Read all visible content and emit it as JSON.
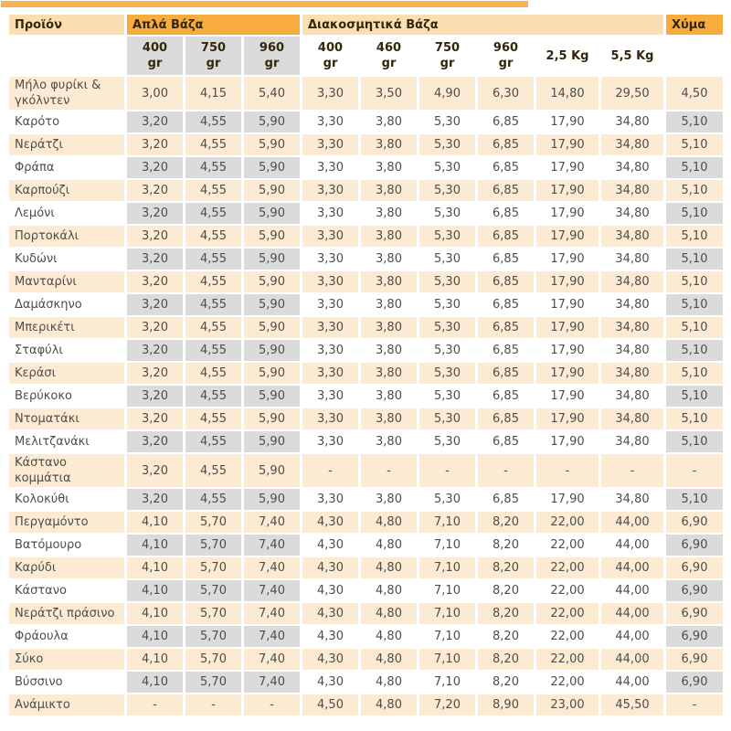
{
  "colors": {
    "top_bar": "#f9b353",
    "header_dark_orange": "#f8ac3e",
    "header_light_orange": "#fbdfb2",
    "row_cream": "#fcebd2",
    "cell_gray": "#dbdbdb",
    "value_text": "#4d4d4d",
    "header_text": "#33270a"
  },
  "table": {
    "header_groups": [
      {
        "label": "Προϊόν",
        "colspan": 1,
        "tone": "light"
      },
      {
        "label": "Απλά Βάζα",
        "colspan": 3,
        "tone": "dark"
      },
      {
        "label": "Διακοσμητικά Βάζα",
        "colspan": 6,
        "tone": "light"
      },
      {
        "label": "Χύμα",
        "colspan": 1,
        "tone": "dark"
      }
    ],
    "size_columns": [
      {
        "label": "400 gr",
        "two_line": true,
        "group": "simple"
      },
      {
        "label": "750 gr",
        "two_line": true,
        "group": "simple"
      },
      {
        "label": "960 gr",
        "two_line": true,
        "group": "simple"
      },
      {
        "label": "400 gr",
        "two_line": true,
        "group": "decor"
      },
      {
        "label": "460 gr",
        "two_line": true,
        "group": "decor"
      },
      {
        "label": "750 gr",
        "two_line": true,
        "group": "decor"
      },
      {
        "label": "960 gr",
        "two_line": true,
        "group": "decor"
      },
      {
        "label": "2,5 Kg",
        "two_line": false,
        "group": "decor"
      },
      {
        "label": "5,5 Kg",
        "two_line": false,
        "group": "decor"
      }
    ],
    "rows": [
      {
        "name": "Μήλο φυρίκι & γκόλντεν",
        "values": [
          "3,00",
          "4,15",
          "5,40",
          "3,30",
          "3,50",
          "4,90",
          "6,30",
          "14,80",
          "29,50",
          "4,50"
        ]
      },
      {
        "name": "Καρότο",
        "values": [
          "3,20",
          "4,55",
          "5,90",
          "3,30",
          "3,80",
          "5,30",
          "6,85",
          "17,90",
          "34,80",
          "5,10"
        ]
      },
      {
        "name": "Νεράτζι",
        "values": [
          "3,20",
          "4,55",
          "5,90",
          "3,30",
          "3,80",
          "5,30",
          "6,85",
          "17,90",
          "34,80",
          "5,10"
        ]
      },
      {
        "name": "Φράπα",
        "values": [
          "3,20",
          "4,55",
          "5,90",
          "3,30",
          "3,80",
          "5,30",
          "6,85",
          "17,90",
          "34,80",
          "5,10"
        ]
      },
      {
        "name": "Καρπούζι",
        "values": [
          "3,20",
          "4,55",
          "5,90",
          "3,30",
          "3,80",
          "5,30",
          "6,85",
          "17,90",
          "34,80",
          "5,10"
        ]
      },
      {
        "name": "Λεμόνι",
        "values": [
          "3,20",
          "4,55",
          "5,90",
          "3,30",
          "3,80",
          "5,30",
          "6,85",
          "17,90",
          "34,80",
          "5,10"
        ]
      },
      {
        "name": "Πορτοκάλι",
        "values": [
          "3,20",
          "4,55",
          "5,90",
          "3,30",
          "3,80",
          "5,30",
          "6,85",
          "17,90",
          "34,80",
          "5,10"
        ]
      },
      {
        "name": "Κυδώνι",
        "values": [
          "3,20",
          "4,55",
          "5,90",
          "3,30",
          "3,80",
          "5,30",
          "6,85",
          "17,90",
          "34,80",
          "5,10"
        ]
      },
      {
        "name": "Μανταρίνι",
        "values": [
          "3,20",
          "4,55",
          "5,90",
          "3,30",
          "3,80",
          "5,30",
          "6,85",
          "17,90",
          "34,80",
          "5,10"
        ]
      },
      {
        "name": "Δαμάσκηνο",
        "values": [
          "3,20",
          "4,55",
          "5,90",
          "3,30",
          "3,80",
          "5,30",
          "6,85",
          "17,90",
          "34,80",
          "5,10"
        ]
      },
      {
        "name": "Μπερικέτι",
        "values": [
          "3,20",
          "4,55",
          "5,90",
          "3,30",
          "3,80",
          "5,30",
          "6,85",
          "17,90",
          "34,80",
          "5,10"
        ]
      },
      {
        "name": "Σταφύλι",
        "values": [
          "3,20",
          "4,55",
          "5,90",
          "3,30",
          "3,80",
          "5,30",
          "6,85",
          "17,90",
          "34,80",
          "5,10"
        ]
      },
      {
        "name": "Κεράσι",
        "values": [
          "3,20",
          "4,55",
          "5,90",
          "3,30",
          "3,80",
          "5,30",
          "6,85",
          "17,90",
          "34,80",
          "5,10"
        ]
      },
      {
        "name": "Βερύκοκο",
        "values": [
          "3,20",
          "4,55",
          "5,90",
          "3,30",
          "3,80",
          "5,30",
          "6,85",
          "17,90",
          "34,80",
          "5,10"
        ]
      },
      {
        "name": "Ντοματάκι",
        "values": [
          "3,20",
          "4,55",
          "5,90",
          "3,30",
          "3,80",
          "5,30",
          "6,85",
          "17,90",
          "34,80",
          "5,10"
        ]
      },
      {
        "name": "Μελιτζανάκι",
        "values": [
          "3,20",
          "4,55",
          "5,90",
          "3,30",
          "3,80",
          "5,30",
          "6,85",
          "17,90",
          "34,80",
          "5,10"
        ]
      },
      {
        "name": "Κάστανο κομμάτια",
        "values": [
          "3,20",
          "4,55",
          "5,90",
          "-",
          "-",
          "-",
          "-",
          "-",
          "-",
          "-"
        ]
      },
      {
        "name": "Κολοκύθι",
        "values": [
          "3,20",
          "4,55",
          "5,90",
          "3,30",
          "3,80",
          "5,30",
          "6,85",
          "17,90",
          "34,80",
          "5,10"
        ]
      },
      {
        "name": "Περγαμόντο",
        "values": [
          "4,10",
          "5,70",
          "7,40",
          "4,30",
          "4,80",
          "7,10",
          "8,20",
          "22,00",
          "44,00",
          "6,90"
        ]
      },
      {
        "name": "Βατόμουρο",
        "values": [
          "4,10",
          "5,70",
          "7,40",
          "4,30",
          "4,80",
          "7,10",
          "8,20",
          "22,00",
          "44,00",
          "6,90"
        ]
      },
      {
        "name": "Καρύδι",
        "values": [
          "4,10",
          "5,70",
          "7,40",
          "4,30",
          "4,80",
          "7,10",
          "8,20",
          "22,00",
          "44,00",
          "6,90"
        ]
      },
      {
        "name": "Κάστανο",
        "values": [
          "4,10",
          "5,70",
          "7,40",
          "4,30",
          "4,80",
          "7,10",
          "8,20",
          "22,00",
          "44,00",
          "6,90"
        ]
      },
      {
        "name": "Νεράτζι πράσινο",
        "values": [
          "4,10",
          "5,70",
          "7,40",
          "4,30",
          "4,80",
          "7,10",
          "8,20",
          "22,00",
          "44,00",
          "6,90"
        ]
      },
      {
        "name": "Φράουλα",
        "values": [
          "4,10",
          "5,70",
          "7,40",
          "4,30",
          "4,80",
          "7,10",
          "8,20",
          "22,00",
          "44,00",
          "6,90"
        ]
      },
      {
        "name": "Σύκο",
        "values": [
          "4,10",
          "5,70",
          "7,40",
          "4,30",
          "4,80",
          "7,10",
          "8,20",
          "22,00",
          "44,00",
          "6,90"
        ]
      },
      {
        "name": "Βύσσινο",
        "values": [
          "4,10",
          "5,70",
          "7,40",
          "4,30",
          "4,80",
          "7,10",
          "8,20",
          "22,00",
          "44,00",
          "6,90"
        ]
      },
      {
        "name": "Ανάμικτο",
        "values": [
          "-",
          "-",
          "-",
          "4,50",
          "4,80",
          "7,20",
          "8,90",
          "23,00",
          "45,50",
          "-"
        ]
      }
    ]
  }
}
